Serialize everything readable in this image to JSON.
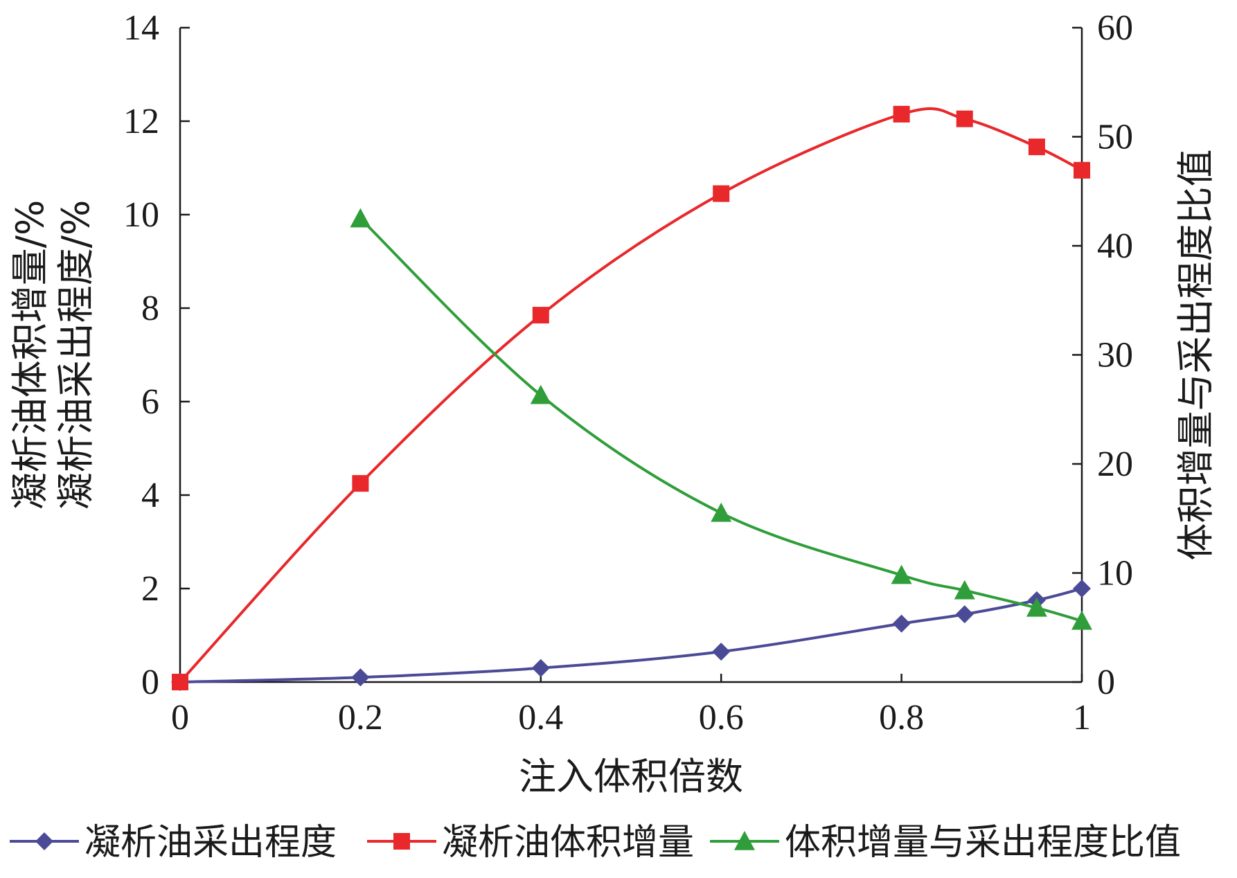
{
  "chart_data": {
    "type": "line",
    "xlabel": "注入体积倍数",
    "ylabel_left": [
      "凝析油体积增量/%",
      "凝析油采出程度/%"
    ],
    "ylabel_right": "体积增量与采出程度比值",
    "xlim": [
      0,
      1
    ],
    "ylim_left": [
      0,
      14
    ],
    "ylim_right": [
      0,
      60
    ],
    "x_ticks": [
      "0",
      "0.2",
      "0.4",
      "0.6",
      "0.8",
      "1"
    ],
    "y_left_ticks": [
      "0",
      "2",
      "4",
      "6",
      "8",
      "10",
      "12",
      "14"
    ],
    "y_right_ticks": [
      "0",
      "10",
      "20",
      "30",
      "40",
      "50",
      "60"
    ],
    "grid": false,
    "legend_position": "bottom",
    "series": [
      {
        "name": "凝析油采出程度",
        "axis": "left",
        "color": "#4a4a96",
        "marker": "diamond",
        "x": [
          0,
          0.2,
          0.4,
          0.6,
          0.8,
          0.87,
          0.95,
          1.0
        ],
        "y": [
          0,
          0.1,
          0.3,
          0.65,
          1.25,
          1.45,
          1.75,
          2.0
        ]
      },
      {
        "name": "凝析油体积增量",
        "axis": "left",
        "color": "#e8282a",
        "marker": "square",
        "x": [
          0,
          0.2,
          0.4,
          0.6,
          0.8,
          0.87,
          0.95,
          1.0
        ],
        "y": [
          0,
          4.25,
          7.85,
          10.45,
          12.15,
          12.05,
          11.45,
          10.95
        ]
      },
      {
        "name": "体积增量与采出程度比值",
        "axis": "right",
        "color": "#2f9e3a",
        "marker": "triangle",
        "x": [
          0.2,
          0.4,
          0.6,
          0.8,
          0.87,
          0.95,
          1.0
        ],
        "y": [
          42.5,
          26.3,
          15.5,
          9.8,
          8.4,
          6.8,
          5.6
        ]
      }
    ]
  }
}
